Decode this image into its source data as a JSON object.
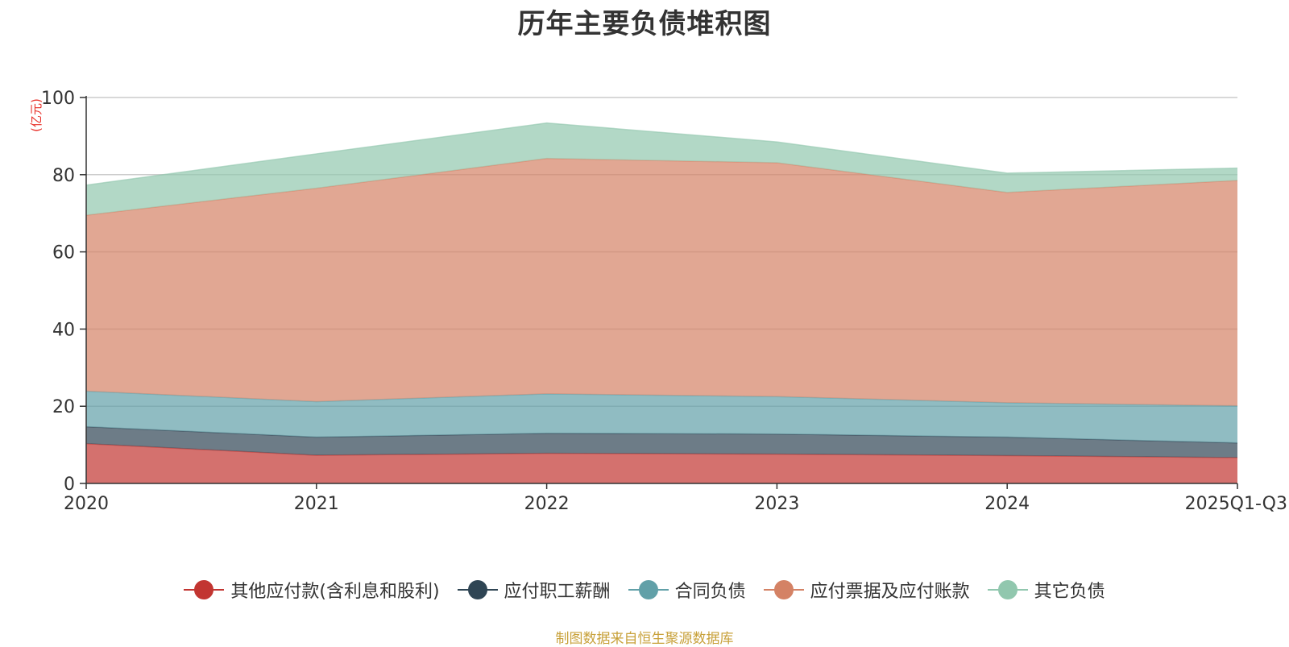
{
  "chart_data": {
    "type": "area",
    "stacked": true,
    "title": "历年主要负债堆积图",
    "ylabel": "(亿元)",
    "xlabel": "",
    "ylim": [
      0,
      100
    ],
    "yticks": [
      0,
      20,
      40,
      60,
      80,
      100
    ],
    "categories": [
      "2020",
      "2021",
      "2022",
      "2023",
      "2024",
      "2025Q1-Q3"
    ],
    "series": [
      {
        "name": "其他应付款(含利息和股利)",
        "color": "#c23531",
        "values": [
          10.3,
          7.3,
          7.8,
          7.6,
          7.2,
          6.7
        ]
      },
      {
        "name": "应付职工薪酬",
        "color": "#2f4554",
        "values": [
          4.4,
          4.7,
          5.2,
          5.2,
          4.8,
          3.8
        ]
      },
      {
        "name": "合同负债",
        "color": "#61a0a8",
        "values": [
          9.2,
          9.2,
          10.2,
          9.7,
          8.9,
          9.6
        ]
      },
      {
        "name": "应付票据及应付账款",
        "color": "#d48265",
        "values": [
          45.6,
          55.3,
          61.0,
          60.6,
          54.5,
          58.4
        ]
      },
      {
        "name": "其它负债",
        "color": "#91c7ae",
        "values": [
          7.8,
          8.9,
          9.2,
          5.4,
          5.0,
          3.2
        ]
      }
    ],
    "grid": true,
    "legend_position": "bottom"
  },
  "source_note": "制图数据来自恒生聚源数据库"
}
